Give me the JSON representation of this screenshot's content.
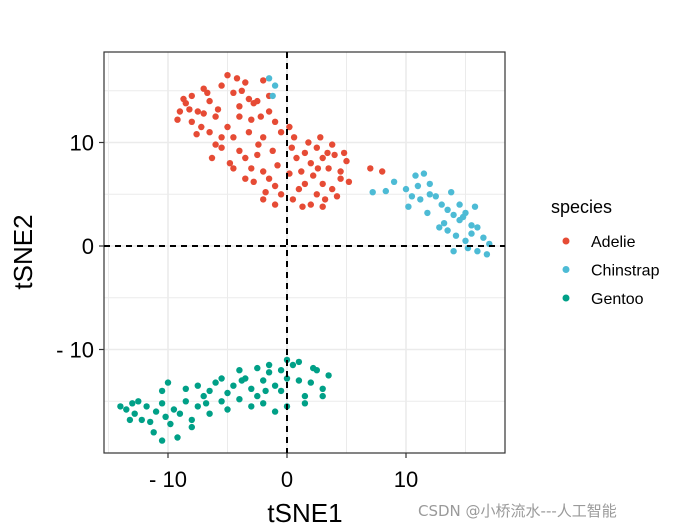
{
  "chart_data": {
    "type": "scatter",
    "title": "",
    "xlabel": "tSNE1",
    "ylabel": "tSNE2",
    "xlim": [
      -15.4,
      18.3
    ],
    "ylim": [
      -20,
      18.7
    ],
    "x_ticks": [
      -10,
      0,
      10
    ],
    "x_tick_labels": [
      "- 10",
      "0",
      "10"
    ],
    "y_ticks": [
      -10,
      0,
      10
    ],
    "y_tick_labels": [
      "- 10",
      "0",
      "10"
    ],
    "grid": true,
    "reference_lines": {
      "x": 0,
      "y": 0,
      "style": "dashed"
    },
    "legend": {
      "title": "species",
      "position": "right",
      "entries": [
        "Adelie",
        "Chinstrap",
        "Gentoo"
      ]
    },
    "colors": {
      "Adelie": "#E64B35",
      "Chinstrap": "#4DBBD5",
      "Gentoo": "#00A087"
    },
    "series": [
      {
        "name": "Adelie",
        "points": [
          [
            -8.5,
            13.8
          ],
          [
            -8,
            14.5
          ],
          [
            -7.5,
            13
          ],
          [
            -7,
            15.2
          ],
          [
            -6.5,
            14
          ],
          [
            -6,
            12.5
          ],
          [
            -5.5,
            15.5
          ],
          [
            -5,
            16.5
          ],
          [
            -4.5,
            14.8
          ],
          [
            -4,
            13.5
          ],
          [
            -3.5,
            15.8
          ],
          [
            -3,
            12.2
          ],
          [
            -2.5,
            14
          ],
          [
            -2,
            16
          ],
          [
            -1.5,
            13
          ],
          [
            -1,
            12
          ],
          [
            -0.5,
            11
          ],
          [
            0.2,
            11.5
          ],
          [
            0.6,
            10.5
          ],
          [
            -8,
            12
          ],
          [
            -7.2,
            11.5
          ],
          [
            -6.5,
            11
          ],
          [
            -5.8,
            13.2
          ],
          [
            -5,
            11.5
          ],
          [
            -4.5,
            10.5
          ],
          [
            -4,
            12.5
          ],
          [
            -3.2,
            11
          ],
          [
            -2.8,
            13.8
          ],
          [
            -2,
            10.5
          ],
          [
            -1.5,
            14.5
          ],
          [
            -6,
            9.8
          ],
          [
            -5.5,
            10.5
          ],
          [
            -7,
            12.8
          ],
          [
            -8.2,
            13.2
          ],
          [
            -3.8,
            15
          ],
          [
            -2.2,
            12.5
          ],
          [
            -6.3,
            8.5
          ],
          [
            -5.5,
            9.5
          ],
          [
            -4.8,
            8
          ],
          [
            -4,
            9.2
          ],
          [
            -3.5,
            8.5
          ],
          [
            -3,
            7.5
          ],
          [
            -2.5,
            8.8
          ],
          [
            -2,
            7.2
          ],
          [
            -1.5,
            6.5
          ],
          [
            -1,
            5.8
          ],
          [
            -0.5,
            5
          ],
          [
            -2.8,
            6.2
          ],
          [
            -2,
            4.5
          ],
          [
            -1,
            4
          ],
          [
            0.5,
            4.5
          ],
          [
            1,
            5.5
          ],
          [
            0.2,
            7
          ],
          [
            -3.5,
            6.5
          ],
          [
            -4.5,
            7.5
          ],
          [
            1.5,
            9
          ],
          [
            2,
            8
          ],
          [
            2.5,
            9.5
          ],
          [
            3,
            8.5
          ],
          [
            3.5,
            7.5
          ],
          [
            4,
            8.8
          ],
          [
            4.5,
            7.2
          ],
          [
            5,
            8.2
          ],
          [
            2.2,
            6.8
          ],
          [
            3,
            6
          ],
          [
            3.8,
            5.5
          ],
          [
            4.5,
            6.5
          ],
          [
            1.5,
            6
          ],
          [
            2.5,
            5
          ],
          [
            3.2,
            4.5
          ],
          [
            2,
            4
          ],
          [
            1.3,
            3.8
          ],
          [
            3,
            3.8
          ],
          [
            1.8,
            10
          ],
          [
            2.8,
            10.5
          ],
          [
            3.8,
            9.8
          ],
          [
            4.8,
            9
          ],
          [
            5.2,
            6.2
          ],
          [
            -9,
            13
          ],
          [
            -9.2,
            12.2
          ],
          [
            -8.7,
            14.2
          ],
          [
            -7.6,
            10.8
          ],
          [
            -6.7,
            14.8
          ],
          [
            -4.2,
            16.2
          ],
          [
            -3.2,
            14.2
          ],
          [
            -1.2,
            9.2
          ],
          [
            -0.8,
            7.8
          ],
          [
            0.8,
            8.5
          ],
          [
            1.2,
            7.2
          ],
          [
            2.6,
            7.5
          ],
          [
            3.4,
            9
          ],
          [
            4.2,
            4.8
          ],
          [
            0.4,
            9.5
          ],
          [
            -1.8,
            5.2
          ],
          [
            -2.4,
            9.8
          ],
          [
            7,
            7.5
          ],
          [
            8,
            7.2
          ]
        ]
      },
      {
        "name": "Chinstrap",
        "points": [
          [
            -1.5,
            16.2
          ],
          [
            -1,
            15.5
          ],
          [
            -1.2,
            14.5
          ],
          [
            7.2,
            5.2
          ],
          [
            8.3,
            5.3
          ],
          [
            9,
            6.2
          ],
          [
            10,
            5.5
          ],
          [
            11,
            5.8
          ],
          [
            11.5,
            7
          ],
          [
            12,
            6
          ],
          [
            10.5,
            4.8
          ],
          [
            11.2,
            4.5
          ],
          [
            12,
            5
          ],
          [
            12.5,
            4.8
          ],
          [
            13,
            4
          ],
          [
            13.5,
            3.5
          ],
          [
            14,
            3
          ],
          [
            14.5,
            2.5
          ],
          [
            15,
            3.2
          ],
          [
            15.5,
            2
          ],
          [
            16,
            1.8
          ],
          [
            13.5,
            1.5
          ],
          [
            14.2,
            1
          ],
          [
            15,
            0.5
          ],
          [
            15.5,
            1.2
          ],
          [
            16.5,
            0.8
          ],
          [
            15.2,
            -0.2
          ],
          [
            16,
            -0.5
          ],
          [
            17,
            0.2
          ],
          [
            16.8,
            -0.8
          ],
          [
            14,
            -0.5
          ],
          [
            14.8,
            2.8
          ],
          [
            12.8,
            1.8
          ],
          [
            11.8,
            3.2
          ],
          [
            10.8,
            6.8
          ],
          [
            13.2,
            2.2
          ],
          [
            15.8,
            3.8
          ],
          [
            14.5,
            4
          ],
          [
            13.8,
            5.2
          ],
          [
            10.2,
            3.8
          ]
        ]
      },
      {
        "name": "Gentoo",
        "points": [
          [
            -14,
            -15.5
          ],
          [
            -13.5,
            -15.8
          ],
          [
            -13,
            -15.2
          ],
          [
            -12.8,
            -16.2
          ],
          [
            -12.2,
            -16.8
          ],
          [
            -11.8,
            -15.5
          ],
          [
            -11.5,
            -17
          ],
          [
            -11,
            -16
          ],
          [
            -10.5,
            -15.2
          ],
          [
            -10.2,
            -16.5
          ],
          [
            -9.8,
            -17.2
          ],
          [
            -9.5,
            -15.8
          ],
          [
            -9,
            -16.2
          ],
          [
            -8.5,
            -15
          ],
          [
            -8,
            -16.8
          ],
          [
            -7.5,
            -15.5
          ],
          [
            -7,
            -14.5
          ],
          [
            -10.5,
            -14
          ],
          [
            -10,
            -13.2
          ],
          [
            -11.2,
            -18
          ],
          [
            -10.5,
            -18.8
          ],
          [
            -9.2,
            -18.5
          ],
          [
            -6.5,
            -14
          ],
          [
            -6,
            -13.2
          ],
          [
            -5.5,
            -15
          ],
          [
            -5,
            -14.2
          ],
          [
            -4.5,
            -13.5
          ],
          [
            -4,
            -14.8
          ],
          [
            -3.5,
            -12.8
          ],
          [
            -3,
            -13.8
          ],
          [
            -2.5,
            -14.5
          ],
          [
            -2,
            -13
          ],
          [
            -1.5,
            -12.2
          ],
          [
            -1,
            -13.5
          ],
          [
            -0.5,
            -14
          ],
          [
            0,
            -12.8
          ],
          [
            0.5,
            -11.5
          ],
          [
            1,
            -13
          ],
          [
            1.5,
            -14.5
          ],
          [
            2,
            -13.2
          ],
          [
            2.5,
            -12
          ],
          [
            3,
            -13.8
          ],
          [
            3.5,
            -12.5
          ],
          [
            0,
            -11
          ],
          [
            -0.5,
            -12
          ],
          [
            -1.5,
            -11.5
          ],
          [
            -2.5,
            -11.8
          ],
          [
            -4,
            -12
          ],
          [
            -5.5,
            -12.8
          ],
          [
            -7.5,
            -13.5
          ],
          [
            -8.5,
            -13.8
          ],
          [
            -3,
            -15.5
          ],
          [
            -2,
            -15.2
          ],
          [
            -1,
            -16
          ],
          [
            0,
            -15.5
          ],
          [
            1.5,
            -15.2
          ],
          [
            -5,
            -15.8
          ],
          [
            -6.5,
            -16.2
          ],
          [
            -8,
            -17.5
          ],
          [
            -12.5,
            -15
          ],
          [
            -13.2,
            -16.8
          ],
          [
            1,
            -11.2
          ],
          [
            2.2,
            -11.8
          ],
          [
            3,
            -14.5
          ],
          [
            -1.8,
            -14
          ],
          [
            -3.8,
            -13
          ],
          [
            -6.8,
            -15.2
          ]
        ]
      }
    ]
  },
  "watermark": "CSDN @小桥流水---人工智能"
}
